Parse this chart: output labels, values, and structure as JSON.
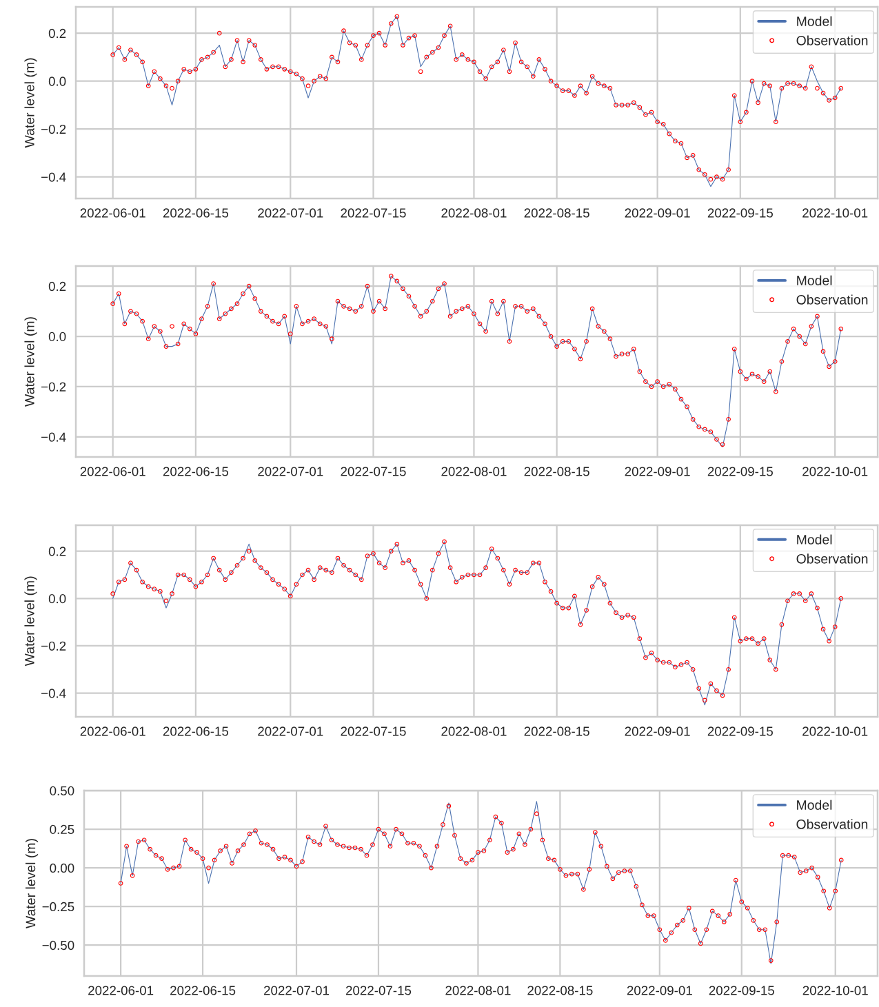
{
  "chart_data": [
    {
      "type": "line",
      "ylabel": "Water level (m)",
      "grid": true,
      "legend": "top right",
      "xlim": [
        "2022-05-25T18:00",
        "2022-10-08T05:00"
      ],
      "xticks": [
        "2022-06-01",
        "2022-06-15",
        "2022-07-01",
        "2022-07-15",
        "2022-08-01",
        "2022-08-15",
        "2022-09-01",
        "2022-09-15",
        "2022-10-01"
      ],
      "ylim": [
        -0.49,
        0.31
      ],
      "yticks": [
        {
          "value": -0.4,
          "label": "−0.4"
        },
        {
          "value": -0.2,
          "label": "−0.2"
        },
        {
          "value": 0.0,
          "label": "0.0"
        },
        {
          "value": 0.2,
          "label": "0.2"
        }
      ],
      "x": [
        "2022-06-01",
        "2022-06-02",
        "2022-06-03",
        "2022-06-04",
        "2022-06-05",
        "2022-06-06",
        "2022-06-07",
        "2022-06-08",
        "2022-06-09",
        "2022-06-10",
        "2022-06-11",
        "2022-06-12",
        "2022-06-13",
        "2022-06-14",
        "2022-06-15",
        "2022-06-16",
        "2022-06-17",
        "2022-06-18",
        "2022-06-19",
        "2022-06-20",
        "2022-06-21",
        "2022-06-22",
        "2022-06-23",
        "2022-06-24",
        "2022-06-25",
        "2022-06-26",
        "2022-06-27",
        "2022-06-28",
        "2022-06-29",
        "2022-06-30",
        "2022-07-01",
        "2022-07-02",
        "2022-07-03",
        "2022-07-04",
        "2022-07-05",
        "2022-07-06",
        "2022-07-07",
        "2022-07-08",
        "2022-07-09",
        "2022-07-10",
        "2022-07-11",
        "2022-07-12",
        "2022-07-13",
        "2022-07-14",
        "2022-07-15",
        "2022-07-16",
        "2022-07-17",
        "2022-07-18",
        "2022-07-19",
        "2022-07-20",
        "2022-07-21",
        "2022-07-22",
        "2022-07-23",
        "2022-07-24",
        "2022-07-25",
        "2022-07-26",
        "2022-07-27",
        "2022-07-28",
        "2022-07-29",
        "2022-07-30",
        "2022-07-31",
        "2022-08-01",
        "2022-08-02",
        "2022-08-03",
        "2022-08-04",
        "2022-08-05",
        "2022-08-06",
        "2022-08-07",
        "2022-08-08",
        "2022-08-09",
        "2022-08-10",
        "2022-08-11",
        "2022-08-12",
        "2022-08-13",
        "2022-08-14",
        "2022-08-15",
        "2022-08-16",
        "2022-08-17",
        "2022-08-18",
        "2022-08-19",
        "2022-08-20",
        "2022-08-21",
        "2022-08-22",
        "2022-08-23",
        "2022-08-24",
        "2022-08-25",
        "2022-08-26",
        "2022-08-27",
        "2022-08-28",
        "2022-08-29",
        "2022-08-30",
        "2022-08-31",
        "2022-09-01",
        "2022-09-02",
        "2022-09-03",
        "2022-09-04",
        "2022-09-05",
        "2022-09-06",
        "2022-09-07",
        "2022-09-08",
        "2022-09-09",
        "2022-09-10",
        "2022-09-11",
        "2022-09-12",
        "2022-09-13",
        "2022-09-14",
        "2022-09-15",
        "2022-09-16",
        "2022-09-17",
        "2022-09-18",
        "2022-09-19",
        "2022-09-20",
        "2022-09-21",
        "2022-09-22",
        "2022-09-23",
        "2022-09-24",
        "2022-09-25",
        "2022-09-26",
        "2022-09-27",
        "2022-09-28",
        "2022-09-29",
        "2022-09-30",
        "2022-10-01",
        "2022-10-02"
      ],
      "series": [
        {
          "name": "Model",
          "color": "#4c72b0",
          "line_style": "solid",
          "values": [
            0.11,
            0.14,
            0.09,
            0.13,
            0.11,
            0.08,
            -0.02,
            0.04,
            0.01,
            -0.02,
            -0.1,
            0.0,
            0.05,
            0.04,
            0.05,
            0.09,
            0.1,
            0.12,
            0.15,
            0.06,
            0.09,
            0.17,
            0.08,
            0.17,
            0.15,
            0.09,
            0.05,
            0.06,
            0.06,
            0.05,
            0.04,
            0.03,
            0.01,
            -0.07,
            0.0,
            0.02,
            0.01,
            0.1,
            0.08,
            0.21,
            0.16,
            0.15,
            0.09,
            0.15,
            0.19,
            0.2,
            0.15,
            0.24,
            0.27,
            0.15,
            0.18,
            0.19,
            0.06,
            0.1,
            0.12,
            0.14,
            0.19,
            0.23,
            0.09,
            0.11,
            0.09,
            0.08,
            0.04,
            0.01,
            0.06,
            0.08,
            0.13,
            0.04,
            0.16,
            0.08,
            0.06,
            0.02,
            0.09,
            0.05,
            0.0,
            -0.02,
            -0.04,
            -0.04,
            -0.06,
            -0.02,
            -0.05,
            0.02,
            -0.01,
            -0.02,
            -0.03,
            -0.1,
            -0.1,
            -0.1,
            -0.09,
            -0.11,
            -0.14,
            -0.13,
            -0.17,
            -0.18,
            -0.22,
            -0.25,
            -0.26,
            -0.32,
            -0.31,
            -0.37,
            -0.39,
            -0.44,
            -0.4,
            -0.41,
            -0.37,
            -0.06,
            -0.17,
            -0.13,
            0.0,
            -0.09,
            -0.01,
            -0.02,
            -0.17,
            -0.03,
            -0.01,
            -0.01,
            -0.02,
            -0.03,
            0.06,
            0.0,
            -0.05,
            -0.08,
            -0.07,
            -0.03
          ]
        },
        {
          "name": "Observation",
          "type": "scatter",
          "marker": "circle",
          "color": "#ff0000",
          "values": [
            0.11,
            0.14,
            0.09,
            0.13,
            0.11,
            0.08,
            -0.02,
            0.04,
            0.01,
            -0.02,
            -0.03,
            0.0,
            0.05,
            0.04,
            0.05,
            0.09,
            0.1,
            0.12,
            0.2,
            0.06,
            0.09,
            0.17,
            0.08,
            0.17,
            0.15,
            0.09,
            0.05,
            0.06,
            0.06,
            0.05,
            0.04,
            0.03,
            0.01,
            -0.02,
            0.0,
            0.02,
            0.01,
            0.1,
            0.08,
            0.21,
            0.16,
            0.15,
            0.09,
            0.15,
            0.19,
            0.2,
            0.15,
            0.24,
            0.27,
            0.15,
            0.18,
            0.19,
            0.04,
            0.1,
            0.12,
            0.14,
            0.19,
            0.23,
            0.09,
            0.11,
            0.09,
            0.08,
            0.04,
            0.01,
            0.06,
            0.08,
            0.13,
            0.04,
            0.16,
            0.08,
            0.06,
            0.02,
            0.09,
            0.05,
            0.0,
            -0.02,
            -0.04,
            -0.04,
            -0.06,
            -0.02,
            -0.05,
            0.02,
            -0.01,
            -0.02,
            -0.03,
            -0.1,
            -0.1,
            -0.1,
            -0.09,
            -0.11,
            -0.14,
            -0.13,
            -0.17,
            -0.18,
            -0.22,
            -0.25,
            -0.26,
            -0.32,
            -0.31,
            -0.37,
            -0.39,
            -0.41,
            -0.4,
            -0.41,
            -0.37,
            -0.06,
            -0.17,
            -0.13,
            0.0,
            -0.09,
            -0.01,
            -0.02,
            -0.17,
            -0.03,
            -0.01,
            -0.01,
            -0.02,
            -0.03,
            0.06,
            -0.03,
            -0.05,
            -0.08,
            -0.07,
            -0.03
          ]
        }
      ]
    },
    {
      "type": "line",
      "ylabel": "Water level (m)",
      "grid": true,
      "legend": "top right",
      "xlim": [
        "2022-05-25T18:00",
        "2022-10-08T05:00"
      ],
      "xticks": [
        "2022-06-01",
        "2022-06-15",
        "2022-07-01",
        "2022-07-15",
        "2022-08-01",
        "2022-08-15",
        "2022-09-01",
        "2022-09-15",
        "2022-10-01"
      ],
      "ylim": [
        -0.48,
        0.28
      ],
      "yticks": [
        {
          "value": -0.4,
          "label": "−0.4"
        },
        {
          "value": -0.2,
          "label": "−0.2"
        },
        {
          "value": 0.0,
          "label": "0.0"
        },
        {
          "value": 0.2,
          "label": "0.2"
        }
      ],
      "x": [
        "2022-06-01",
        "2022-06-02",
        "2022-06-03",
        "2022-06-04",
        "2022-06-05",
        "2022-06-06",
        "2022-06-07",
        "2022-06-08",
        "2022-06-09",
        "2022-06-10",
        "2022-06-11",
        "2022-06-12",
        "2022-06-13",
        "2022-06-14",
        "2022-06-15",
        "2022-06-16",
        "2022-06-17",
        "2022-06-18",
        "2022-06-19",
        "2022-06-20",
        "2022-06-21",
        "2022-06-22",
        "2022-06-23",
        "2022-06-24",
        "2022-06-25",
        "2022-06-26",
        "2022-06-27",
        "2022-06-28",
        "2022-06-29",
        "2022-06-30",
        "2022-07-01",
        "2022-07-02",
        "2022-07-03",
        "2022-07-04",
        "2022-07-05",
        "2022-07-06",
        "2022-07-07",
        "2022-07-08",
        "2022-07-09",
        "2022-07-10",
        "2022-07-11",
        "2022-07-12",
        "2022-07-13",
        "2022-07-14",
        "2022-07-15",
        "2022-07-16",
        "2022-07-17",
        "2022-07-18",
        "2022-07-19",
        "2022-07-20",
        "2022-07-21",
        "2022-07-22",
        "2022-07-23",
        "2022-07-24",
        "2022-07-25",
        "2022-07-26",
        "2022-07-27",
        "2022-07-28",
        "2022-07-29",
        "2022-07-30",
        "2022-07-31",
        "2022-08-01",
        "2022-08-02",
        "2022-08-03",
        "2022-08-04",
        "2022-08-05",
        "2022-08-06",
        "2022-08-07",
        "2022-08-08",
        "2022-08-09",
        "2022-08-10",
        "2022-08-11",
        "2022-08-12",
        "2022-08-13",
        "2022-08-14",
        "2022-08-15",
        "2022-08-16",
        "2022-08-17",
        "2022-08-18",
        "2022-08-19",
        "2022-08-20",
        "2022-08-21",
        "2022-08-22",
        "2022-08-23",
        "2022-08-24",
        "2022-08-25",
        "2022-08-26",
        "2022-08-27",
        "2022-08-28",
        "2022-08-29",
        "2022-08-30",
        "2022-08-31",
        "2022-09-01",
        "2022-09-02",
        "2022-09-03",
        "2022-09-04",
        "2022-09-05",
        "2022-09-06",
        "2022-09-07",
        "2022-09-08",
        "2022-09-09",
        "2022-09-10",
        "2022-09-11",
        "2022-09-12",
        "2022-09-13",
        "2022-09-14",
        "2022-09-15",
        "2022-09-16",
        "2022-09-17",
        "2022-09-18",
        "2022-09-19",
        "2022-09-20",
        "2022-09-21",
        "2022-09-22",
        "2022-09-23",
        "2022-09-24",
        "2022-09-25",
        "2022-09-26",
        "2022-09-27",
        "2022-09-28",
        "2022-09-29",
        "2022-09-30",
        "2022-10-01",
        "2022-10-02"
      ],
      "series": [
        {
          "name": "Model",
          "color": "#4c72b0",
          "line_style": "solid",
          "values": [
            0.13,
            0.17,
            0.05,
            0.1,
            0.09,
            0.06,
            -0.01,
            0.04,
            0.02,
            -0.04,
            -0.04,
            -0.03,
            0.05,
            0.03,
            0.01,
            0.07,
            0.12,
            0.21,
            0.07,
            0.09,
            0.11,
            0.13,
            0.17,
            0.2,
            0.15,
            0.1,
            0.08,
            0.06,
            0.05,
            0.08,
            -0.03,
            0.12,
            0.05,
            0.06,
            0.07,
            0.05,
            0.04,
            -0.03,
            0.14,
            0.12,
            0.11,
            0.1,
            0.12,
            0.2,
            0.1,
            0.14,
            0.11,
            0.24,
            0.22,
            0.19,
            0.16,
            0.12,
            0.08,
            0.1,
            0.14,
            0.19,
            0.21,
            0.08,
            0.1,
            0.11,
            0.12,
            0.09,
            0.05,
            0.02,
            0.14,
            0.09,
            0.14,
            -0.02,
            0.12,
            0.12,
            0.1,
            0.11,
            0.08,
            0.05,
            0.0,
            -0.04,
            -0.02,
            -0.02,
            -0.05,
            -0.09,
            -0.02,
            0.11,
            0.04,
            0.02,
            -0.01,
            -0.08,
            -0.07,
            -0.07,
            -0.05,
            -0.14,
            -0.18,
            -0.2,
            -0.18,
            -0.2,
            -0.19,
            -0.21,
            -0.25,
            -0.28,
            -0.33,
            -0.36,
            -0.37,
            -0.38,
            -0.41,
            -0.44,
            -0.33,
            -0.05,
            -0.14,
            -0.17,
            -0.15,
            -0.16,
            -0.18,
            -0.14,
            -0.22,
            -0.1,
            -0.02,
            0.03,
            0.0,
            -0.03,
            0.04,
            0.08,
            -0.06,
            -0.12,
            -0.1,
            0.03
          ]
        },
        {
          "name": "Observation",
          "type": "scatter",
          "marker": "circle",
          "color": "#ff0000",
          "values": [
            0.13,
            0.17,
            0.05,
            0.1,
            0.09,
            0.06,
            -0.01,
            0.04,
            0.02,
            -0.04,
            0.04,
            -0.03,
            0.05,
            0.03,
            0.01,
            0.07,
            0.12,
            0.21,
            0.07,
            0.09,
            0.11,
            0.13,
            0.17,
            0.2,
            0.15,
            0.1,
            0.08,
            0.06,
            0.05,
            0.08,
            0.01,
            0.12,
            0.05,
            0.06,
            0.07,
            0.05,
            0.04,
            -0.01,
            0.14,
            0.12,
            0.11,
            0.1,
            0.12,
            0.2,
            0.1,
            0.14,
            0.11,
            0.24,
            0.22,
            0.19,
            0.16,
            0.12,
            0.08,
            0.1,
            0.14,
            0.19,
            0.21,
            0.08,
            0.1,
            0.11,
            0.12,
            0.09,
            0.05,
            0.02,
            0.14,
            0.09,
            0.14,
            -0.02,
            0.12,
            0.12,
            0.1,
            0.11,
            0.08,
            0.05,
            0.0,
            -0.04,
            -0.02,
            -0.02,
            -0.05,
            -0.09,
            -0.02,
            0.11,
            0.04,
            0.02,
            -0.01,
            -0.08,
            -0.07,
            -0.07,
            -0.05,
            -0.14,
            -0.18,
            -0.2,
            -0.18,
            -0.2,
            -0.19,
            -0.21,
            -0.25,
            -0.28,
            -0.33,
            -0.36,
            -0.37,
            -0.38,
            -0.41,
            -0.43,
            -0.33,
            -0.05,
            -0.14,
            -0.17,
            -0.15,
            -0.16,
            -0.18,
            -0.14,
            -0.22,
            -0.1,
            -0.02,
            0.03,
            0.0,
            -0.03,
            0.04,
            0.08,
            -0.06,
            -0.12,
            -0.1,
            0.03
          ]
        }
      ]
    },
    {
      "type": "line",
      "ylabel": "Water level (m)",
      "grid": true,
      "legend": "top right",
      "xlim": [
        "2022-05-25T18:00",
        "2022-10-08T05:00"
      ],
      "xticks": [
        "2022-06-01",
        "2022-06-15",
        "2022-07-01",
        "2022-07-15",
        "2022-08-01",
        "2022-08-15",
        "2022-09-01",
        "2022-09-15",
        "2022-10-01"
      ],
      "ylim": [
        -0.5,
        0.31
      ],
      "yticks": [
        {
          "value": -0.4,
          "label": "−0.4"
        },
        {
          "value": -0.2,
          "label": "−0.2"
        },
        {
          "value": 0.0,
          "label": "0.0"
        },
        {
          "value": 0.2,
          "label": "0.2"
        }
      ],
      "x": [
        "2022-06-01",
        "2022-06-02",
        "2022-06-03",
        "2022-06-04",
        "2022-06-05",
        "2022-06-06",
        "2022-06-07",
        "2022-06-08",
        "2022-06-09",
        "2022-06-10",
        "2022-06-11",
        "2022-06-12",
        "2022-06-13",
        "2022-06-14",
        "2022-06-15",
        "2022-06-16",
        "2022-06-17",
        "2022-06-18",
        "2022-06-19",
        "2022-06-20",
        "2022-06-21",
        "2022-06-22",
        "2022-06-23",
        "2022-06-24",
        "2022-06-25",
        "2022-06-26",
        "2022-06-27",
        "2022-06-28",
        "2022-06-29",
        "2022-06-30",
        "2022-07-01",
        "2022-07-02",
        "2022-07-03",
        "2022-07-04",
        "2022-07-05",
        "2022-07-06",
        "2022-07-07",
        "2022-07-08",
        "2022-07-09",
        "2022-07-10",
        "2022-07-11",
        "2022-07-12",
        "2022-07-13",
        "2022-07-14",
        "2022-07-15",
        "2022-07-16",
        "2022-07-17",
        "2022-07-18",
        "2022-07-19",
        "2022-07-20",
        "2022-07-21",
        "2022-07-22",
        "2022-07-23",
        "2022-07-24",
        "2022-07-25",
        "2022-07-26",
        "2022-07-27",
        "2022-07-28",
        "2022-07-29",
        "2022-07-30",
        "2022-07-31",
        "2022-08-01",
        "2022-08-02",
        "2022-08-03",
        "2022-08-04",
        "2022-08-05",
        "2022-08-06",
        "2022-08-07",
        "2022-08-08",
        "2022-08-09",
        "2022-08-10",
        "2022-08-11",
        "2022-08-12",
        "2022-08-13",
        "2022-08-14",
        "2022-08-15",
        "2022-08-16",
        "2022-08-17",
        "2022-08-18",
        "2022-08-19",
        "2022-08-20",
        "2022-08-21",
        "2022-08-22",
        "2022-08-23",
        "2022-08-24",
        "2022-08-25",
        "2022-08-26",
        "2022-08-27",
        "2022-08-28",
        "2022-08-29",
        "2022-08-30",
        "2022-08-31",
        "2022-09-01",
        "2022-09-02",
        "2022-09-03",
        "2022-09-04",
        "2022-09-05",
        "2022-09-06",
        "2022-09-07",
        "2022-09-08",
        "2022-09-09",
        "2022-09-10",
        "2022-09-11",
        "2022-09-12",
        "2022-09-13",
        "2022-09-14",
        "2022-09-15",
        "2022-09-16",
        "2022-09-17",
        "2022-09-18",
        "2022-09-19",
        "2022-09-20",
        "2022-09-21",
        "2022-09-22",
        "2022-09-23",
        "2022-09-24",
        "2022-09-25",
        "2022-09-26",
        "2022-09-27",
        "2022-09-28",
        "2022-09-29",
        "2022-09-30",
        "2022-10-01",
        "2022-10-02"
      ],
      "series": [
        {
          "name": "Model",
          "color": "#4c72b0",
          "line_style": "solid",
          "values": [
            0.0,
            0.07,
            0.08,
            0.15,
            0.12,
            0.07,
            0.05,
            0.04,
            0.03,
            -0.04,
            0.02,
            0.1,
            0.1,
            0.08,
            0.05,
            0.07,
            0.1,
            0.17,
            0.12,
            0.08,
            0.11,
            0.14,
            0.17,
            0.23,
            0.16,
            0.13,
            0.11,
            0.08,
            0.06,
            0.04,
            0.01,
            0.06,
            0.1,
            0.12,
            0.08,
            0.13,
            0.12,
            0.11,
            0.17,
            0.14,
            0.12,
            0.1,
            0.08,
            0.18,
            0.19,
            0.15,
            0.13,
            0.2,
            0.23,
            0.15,
            0.16,
            0.12,
            0.06,
            0.0,
            0.12,
            0.19,
            0.24,
            0.13,
            0.07,
            0.09,
            0.1,
            0.1,
            0.1,
            0.13,
            0.21,
            0.17,
            0.12,
            0.06,
            0.12,
            0.11,
            0.11,
            0.15,
            0.15,
            0.07,
            0.03,
            -0.02,
            -0.04,
            -0.04,
            0.01,
            -0.11,
            -0.05,
            0.05,
            0.09,
            0.06,
            -0.02,
            -0.06,
            -0.08,
            -0.07,
            -0.08,
            -0.17,
            -0.25,
            -0.23,
            -0.26,
            -0.27,
            -0.27,
            -0.29,
            -0.28,
            -0.27,
            -0.3,
            -0.38,
            -0.45,
            -0.36,
            -0.39,
            -0.41,
            -0.3,
            -0.08,
            -0.18,
            -0.17,
            -0.17,
            -0.19,
            -0.17,
            -0.26,
            -0.3,
            -0.11,
            -0.01,
            0.02,
            0.02,
            -0.01,
            0.02,
            -0.04,
            -0.13,
            -0.18,
            -0.12,
            0.0
          ]
        },
        {
          "name": "Observation",
          "type": "scatter",
          "marker": "circle",
          "color": "#ff0000",
          "values": [
            0.02,
            0.07,
            0.08,
            0.15,
            0.12,
            0.07,
            0.05,
            0.04,
            0.03,
            -0.01,
            0.02,
            0.1,
            0.1,
            0.08,
            0.05,
            0.07,
            0.1,
            0.17,
            0.12,
            0.08,
            0.11,
            0.14,
            0.17,
            0.2,
            0.16,
            0.13,
            0.11,
            0.08,
            0.06,
            0.04,
            0.01,
            0.06,
            0.1,
            0.12,
            0.08,
            0.13,
            0.12,
            0.11,
            0.17,
            0.14,
            0.12,
            0.1,
            0.08,
            0.18,
            0.19,
            0.15,
            0.13,
            0.2,
            0.23,
            0.15,
            0.16,
            0.12,
            0.06,
            0.0,
            0.12,
            0.19,
            0.24,
            0.13,
            0.07,
            0.09,
            0.1,
            0.1,
            0.1,
            0.13,
            0.21,
            0.17,
            0.12,
            0.06,
            0.12,
            0.11,
            0.11,
            0.15,
            0.15,
            0.07,
            0.03,
            -0.02,
            -0.04,
            -0.04,
            0.01,
            -0.11,
            -0.05,
            0.05,
            0.09,
            0.06,
            -0.02,
            -0.06,
            -0.08,
            -0.07,
            -0.08,
            -0.17,
            -0.25,
            -0.23,
            -0.26,
            -0.27,
            -0.27,
            -0.29,
            -0.28,
            -0.27,
            -0.3,
            -0.38,
            -0.43,
            -0.36,
            -0.39,
            -0.41,
            -0.3,
            -0.08,
            -0.18,
            -0.17,
            -0.17,
            -0.19,
            -0.17,
            -0.26,
            -0.3,
            -0.11,
            -0.01,
            0.02,
            0.02,
            -0.01,
            0.02,
            -0.04,
            -0.13,
            -0.18,
            -0.12,
            0.0
          ]
        }
      ]
    },
    {
      "type": "line",
      "ylabel": "Water level (m)",
      "grid": true,
      "legend": "top right",
      "xlim": [
        "2022-05-25T18:00",
        "2022-10-08T05:00"
      ],
      "xticks": [
        "2022-06-01",
        "2022-06-15",
        "2022-07-01",
        "2022-07-15",
        "2022-08-01",
        "2022-08-15",
        "2022-09-01",
        "2022-09-15",
        "2022-10-01"
      ],
      "ylim": [
        -0.7,
        0.5
      ],
      "yticks": [
        {
          "value": -0.5,
          "label": "−0.50"
        },
        {
          "value": -0.25,
          "label": "−0.25"
        },
        {
          "value": 0.0,
          "label": "0.00"
        },
        {
          "value": 0.25,
          "label": "0.25"
        },
        {
          "value": 0.5,
          "label": "0.50"
        }
      ],
      "x": [
        "2022-06-01",
        "2022-06-02",
        "2022-06-03",
        "2022-06-04",
        "2022-06-05",
        "2022-06-06",
        "2022-06-07",
        "2022-06-08",
        "2022-06-09",
        "2022-06-10",
        "2022-06-11",
        "2022-06-12",
        "2022-06-13",
        "2022-06-14",
        "2022-06-15",
        "2022-06-16",
        "2022-06-17",
        "2022-06-18",
        "2022-06-19",
        "2022-06-20",
        "2022-06-21",
        "2022-06-22",
        "2022-06-23",
        "2022-06-24",
        "2022-06-25",
        "2022-06-26",
        "2022-06-27",
        "2022-06-28",
        "2022-06-29",
        "2022-06-30",
        "2022-07-01",
        "2022-07-02",
        "2022-07-03",
        "2022-07-04",
        "2022-07-05",
        "2022-07-06",
        "2022-07-07",
        "2022-07-08",
        "2022-07-09",
        "2022-07-10",
        "2022-07-11",
        "2022-07-12",
        "2022-07-13",
        "2022-07-14",
        "2022-07-15",
        "2022-07-16",
        "2022-07-17",
        "2022-07-18",
        "2022-07-19",
        "2022-07-20",
        "2022-07-21",
        "2022-07-22",
        "2022-07-23",
        "2022-07-24",
        "2022-07-25",
        "2022-07-26",
        "2022-07-27",
        "2022-07-28",
        "2022-07-29",
        "2022-07-30",
        "2022-07-31",
        "2022-08-01",
        "2022-08-02",
        "2022-08-03",
        "2022-08-04",
        "2022-08-05",
        "2022-08-06",
        "2022-08-07",
        "2022-08-08",
        "2022-08-09",
        "2022-08-10",
        "2022-08-11",
        "2022-08-12",
        "2022-08-13",
        "2022-08-14",
        "2022-08-15",
        "2022-08-16",
        "2022-08-17",
        "2022-08-18",
        "2022-08-19",
        "2022-08-20",
        "2022-08-21",
        "2022-08-22",
        "2022-08-23",
        "2022-08-24",
        "2022-08-25",
        "2022-08-26",
        "2022-08-27",
        "2022-08-28",
        "2022-08-29",
        "2022-08-30",
        "2022-08-31",
        "2022-09-01",
        "2022-09-02",
        "2022-09-03",
        "2022-09-04",
        "2022-09-05",
        "2022-09-06",
        "2022-09-07",
        "2022-09-08",
        "2022-09-09",
        "2022-09-10",
        "2022-09-11",
        "2022-09-12",
        "2022-09-13",
        "2022-09-14",
        "2022-09-15",
        "2022-09-16",
        "2022-09-17",
        "2022-09-18",
        "2022-09-19",
        "2022-09-20",
        "2022-09-21",
        "2022-09-22",
        "2022-09-23",
        "2022-09-24",
        "2022-09-25",
        "2022-09-26",
        "2022-09-27",
        "2022-09-28",
        "2022-09-29",
        "2022-09-30",
        "2022-10-01",
        "2022-10-02"
      ],
      "series": [
        {
          "name": "Model",
          "color": "#4c72b0",
          "line_style": "solid",
          "values": [
            -0.1,
            0.14,
            -0.05,
            0.17,
            0.18,
            0.12,
            0.08,
            0.06,
            -0.01,
            0.0,
            0.01,
            0.18,
            0.12,
            0.1,
            0.06,
            -0.1,
            0.05,
            0.11,
            0.14,
            0.03,
            0.11,
            0.15,
            0.22,
            0.24,
            0.16,
            0.15,
            0.12,
            0.06,
            0.07,
            0.05,
            0.01,
            0.04,
            0.2,
            0.17,
            0.15,
            0.27,
            0.18,
            0.15,
            0.14,
            0.13,
            0.13,
            0.12,
            0.08,
            0.15,
            0.25,
            0.22,
            0.14,
            0.25,
            0.22,
            0.16,
            0.16,
            0.14,
            0.08,
            0.0,
            0.14,
            0.28,
            0.42,
            0.21,
            0.06,
            0.03,
            0.05,
            0.1,
            0.11,
            0.18,
            0.33,
            0.29,
            0.1,
            0.12,
            0.22,
            0.15,
            0.25,
            0.43,
            0.18,
            0.06,
            0.05,
            -0.01,
            -0.05,
            -0.04,
            -0.04,
            -0.14,
            -0.01,
            0.23,
            0.14,
            0.01,
            -0.07,
            -0.03,
            -0.02,
            -0.02,
            -0.12,
            -0.24,
            -0.31,
            -0.31,
            -0.4,
            -0.47,
            -0.42,
            -0.37,
            -0.34,
            -0.26,
            -0.4,
            -0.49,
            -0.4,
            -0.28,
            -0.31,
            -0.35,
            -0.3,
            -0.08,
            -0.22,
            -0.26,
            -0.34,
            -0.4,
            -0.4,
            -0.62,
            -0.35,
            0.08,
            0.08,
            0.07,
            -0.03,
            -0.02,
            0.0,
            -0.06,
            -0.15,
            -0.26,
            -0.15,
            0.05
          ]
        },
        {
          "name": "Observation",
          "type": "scatter",
          "marker": "circle",
          "color": "#ff0000",
          "values": [
            -0.1,
            0.14,
            -0.05,
            0.17,
            0.18,
            0.12,
            0.08,
            0.06,
            -0.01,
            0.0,
            0.01,
            0.18,
            0.12,
            0.1,
            0.06,
            0.0,
            0.05,
            0.11,
            0.14,
            0.03,
            0.11,
            0.15,
            0.22,
            0.24,
            0.16,
            0.15,
            0.12,
            0.06,
            0.07,
            0.05,
            0.01,
            0.04,
            0.2,
            0.17,
            0.15,
            0.27,
            0.18,
            0.15,
            0.14,
            0.13,
            0.13,
            0.12,
            0.08,
            0.15,
            0.25,
            0.22,
            0.14,
            0.25,
            0.22,
            0.16,
            0.16,
            0.14,
            0.08,
            0.0,
            0.14,
            0.28,
            0.4,
            0.21,
            0.06,
            0.03,
            0.05,
            0.1,
            0.11,
            0.18,
            0.33,
            0.29,
            0.1,
            0.12,
            0.22,
            0.15,
            0.25,
            0.35,
            0.18,
            0.06,
            0.05,
            -0.01,
            -0.05,
            -0.04,
            -0.04,
            -0.14,
            -0.01,
            0.23,
            0.14,
            0.01,
            -0.07,
            -0.03,
            -0.02,
            -0.02,
            -0.12,
            -0.24,
            -0.31,
            -0.31,
            -0.4,
            -0.47,
            -0.42,
            -0.37,
            -0.34,
            -0.26,
            -0.4,
            -0.49,
            -0.4,
            -0.28,
            -0.31,
            -0.35,
            -0.3,
            -0.08,
            -0.22,
            -0.26,
            -0.34,
            -0.4,
            -0.4,
            -0.6,
            -0.35,
            0.08,
            0.08,
            0.07,
            -0.03,
            -0.02,
            0.0,
            -0.06,
            -0.15,
            -0.26,
            -0.15,
            0.05
          ]
        }
      ]
    }
  ]
}
